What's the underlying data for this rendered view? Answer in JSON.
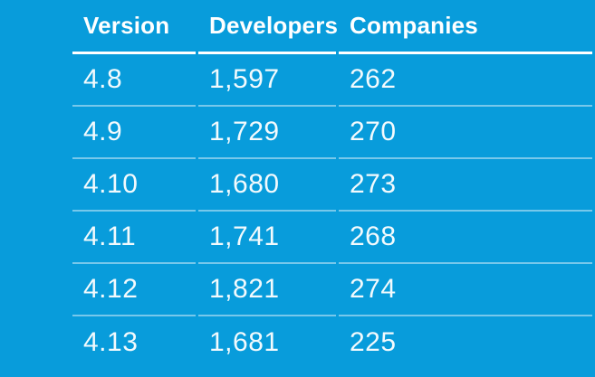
{
  "colors": {
    "background": "#089cdb",
    "header_text": "#ffffff",
    "header_rule": "#ffffff",
    "row_rule": "rgba(255,255,255,0.45)",
    "body_text": "rgba(255,255,255,0.95)"
  },
  "table": {
    "headers": [
      "Version",
      "Developers",
      "Companies"
    ],
    "rows": [
      [
        "4.8",
        "1,597",
        "262"
      ],
      [
        "4.9",
        "1,729",
        "270"
      ],
      [
        "4.10",
        "1,680",
        "273"
      ],
      [
        "4.11",
        "1,741",
        "268"
      ],
      [
        "4.12",
        "1,821",
        "274"
      ],
      [
        "4.13",
        "1,681",
        "225"
      ]
    ]
  },
  "chart_data": {
    "type": "table",
    "columns": [
      "Version",
      "Developers",
      "Companies"
    ],
    "categories": [
      "4.8",
      "4.9",
      "4.10",
      "4.11",
      "4.12",
      "4.13"
    ],
    "series": [
      {
        "name": "Developers",
        "values": [
          1597,
          1729,
          1680,
          1741,
          1821,
          1681
        ]
      },
      {
        "name": "Companies",
        "values": [
          262,
          270,
          273,
          268,
          274,
          225
        ]
      }
    ],
    "title": "",
    "legend_position": "none",
    "grid": "row-separators"
  }
}
